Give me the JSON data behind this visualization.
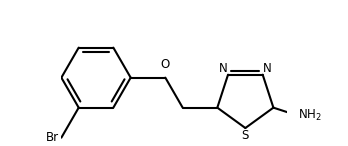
{
  "bg_color": "#ffffff",
  "line_color": "#000000",
  "line_width": 1.5,
  "font_size": 8.5,
  "figsize": [
    3.48,
    1.46
  ],
  "dpi": 100,
  "xlim": [
    0.0,
    6.5
  ],
  "ylim": [
    -1.8,
    2.2
  ]
}
